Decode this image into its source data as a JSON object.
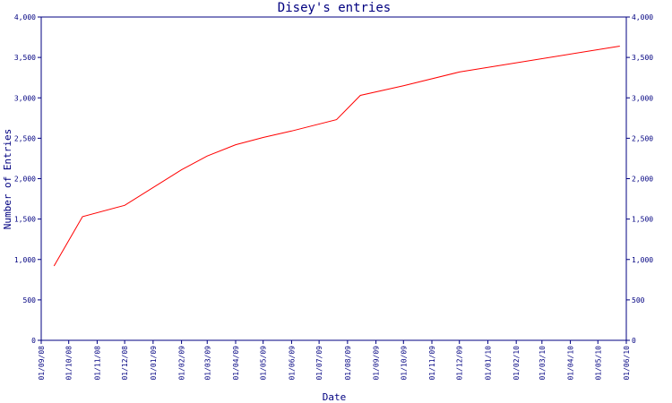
{
  "chart_data": {
    "type": "line",
    "title": "Disey's entries",
    "xlabel": "Date",
    "ylabel": "Number of Entries",
    "ylim": [
      0,
      4000
    ],
    "yticks": [
      0,
      500,
      1000,
      1500,
      2000,
      2500,
      3000,
      3500,
      4000
    ],
    "ytick_labels": [
      "0",
      "500",
      "1,000",
      "1,500",
      "2,000",
      "2,500",
      "3,000",
      "3,500",
      "4,000"
    ],
    "right_axis": true,
    "grid": false,
    "xlim": [
      "2008-09-01",
      "2010-06-01"
    ],
    "xtick_labels": [
      "01/09/08",
      "01/10/08",
      "01/11/08",
      "01/12/08",
      "01/01/09",
      "01/02/09",
      "01/03/09",
      "01/04/09",
      "01/05/09",
      "01/06/09",
      "01/07/09",
      "01/08/09",
      "01/09/09",
      "01/10/09",
      "01/11/09",
      "01/12/09",
      "01/01/10",
      "01/02/10",
      "01/03/10",
      "01/04/10",
      "01/05/10",
      "01/06/10"
    ],
    "line_color": "#ff0000",
    "axis_color": "#000080",
    "series": [
      {
        "x": [
          "2008-09-15",
          "2008-10-16",
          "2008-12-01",
          "2009-02-01",
          "2009-03-01",
          "2009-04-01",
          "2009-05-01",
          "2009-06-01",
          "2009-07-20",
          "2009-08-15",
          "2009-10-01",
          "2009-12-01",
          "2010-05-25"
        ],
        "y": [
          920,
          1530,
          1670,
          2110,
          2280,
          2420,
          2510,
          2590,
          2730,
          3030,
          3150,
          3320,
          3640
        ]
      }
    ]
  }
}
